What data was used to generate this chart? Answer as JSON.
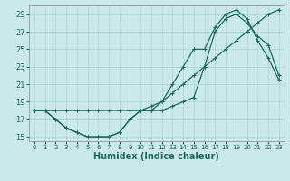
{
  "title": "",
  "xlabel": "Humidex (Indice chaleur)",
  "ylabel": "",
  "background_color": "#cce9e9",
  "grid_color": "#aad4d4",
  "line_color": "#1a6b5a",
  "series": {
    "line1": {
      "x": [
        0,
        1,
        2,
        3,
        4,
        5,
        6,
        7,
        8,
        9,
        10,
        11,
        12,
        13,
        14,
        15,
        16,
        17,
        18,
        19,
        20,
        21,
        22,
        23
      ],
      "y": [
        18,
        18,
        18,
        18,
        18,
        18,
        18,
        18,
        18,
        18,
        18,
        18.5,
        19,
        20,
        21,
        22,
        23,
        24,
        25,
        26,
        27,
        28,
        29,
        29.5
      ]
    },
    "line2": {
      "x": [
        0,
        1,
        2,
        3,
        4,
        5,
        6,
        7,
        8,
        9,
        10,
        11,
        12,
        13,
        14,
        15,
        16,
        17,
        18,
        19,
        20,
        21,
        22,
        23
      ],
      "y": [
        18,
        18,
        17,
        16,
        15.5,
        15,
        15,
        15,
        15.5,
        17,
        18,
        18,
        18,
        18.5,
        19,
        19.5,
        23,
        27,
        28.5,
        29,
        28,
        26.5,
        25.5,
        22
      ]
    },
    "line3": {
      "x": [
        0,
        1,
        2,
        3,
        4,
        5,
        6,
        7,
        8,
        9,
        10,
        11,
        12,
        13,
        14,
        15,
        16,
        17,
        18,
        19,
        20,
        21,
        22,
        23
      ],
      "y": [
        18,
        18,
        17,
        16,
        15.5,
        15,
        15,
        15,
        15.5,
        17,
        18,
        18,
        19,
        21,
        23,
        25,
        25,
        27.5,
        29,
        29.5,
        28.5,
        26,
        24,
        21.5
      ]
    }
  },
  "xlim": [
    -0.5,
    23.5
  ],
  "ylim": [
    14.5,
    30
  ],
  "yticks": [
    15,
    17,
    19,
    21,
    23,
    25,
    27,
    29
  ],
  "xticks": [
    0,
    1,
    2,
    3,
    4,
    5,
    6,
    7,
    8,
    9,
    10,
    11,
    12,
    13,
    14,
    15,
    16,
    17,
    18,
    19,
    20,
    21,
    22,
    23
  ],
  "marker": "+",
  "markersize": 3.5,
  "linewidth": 0.9
}
